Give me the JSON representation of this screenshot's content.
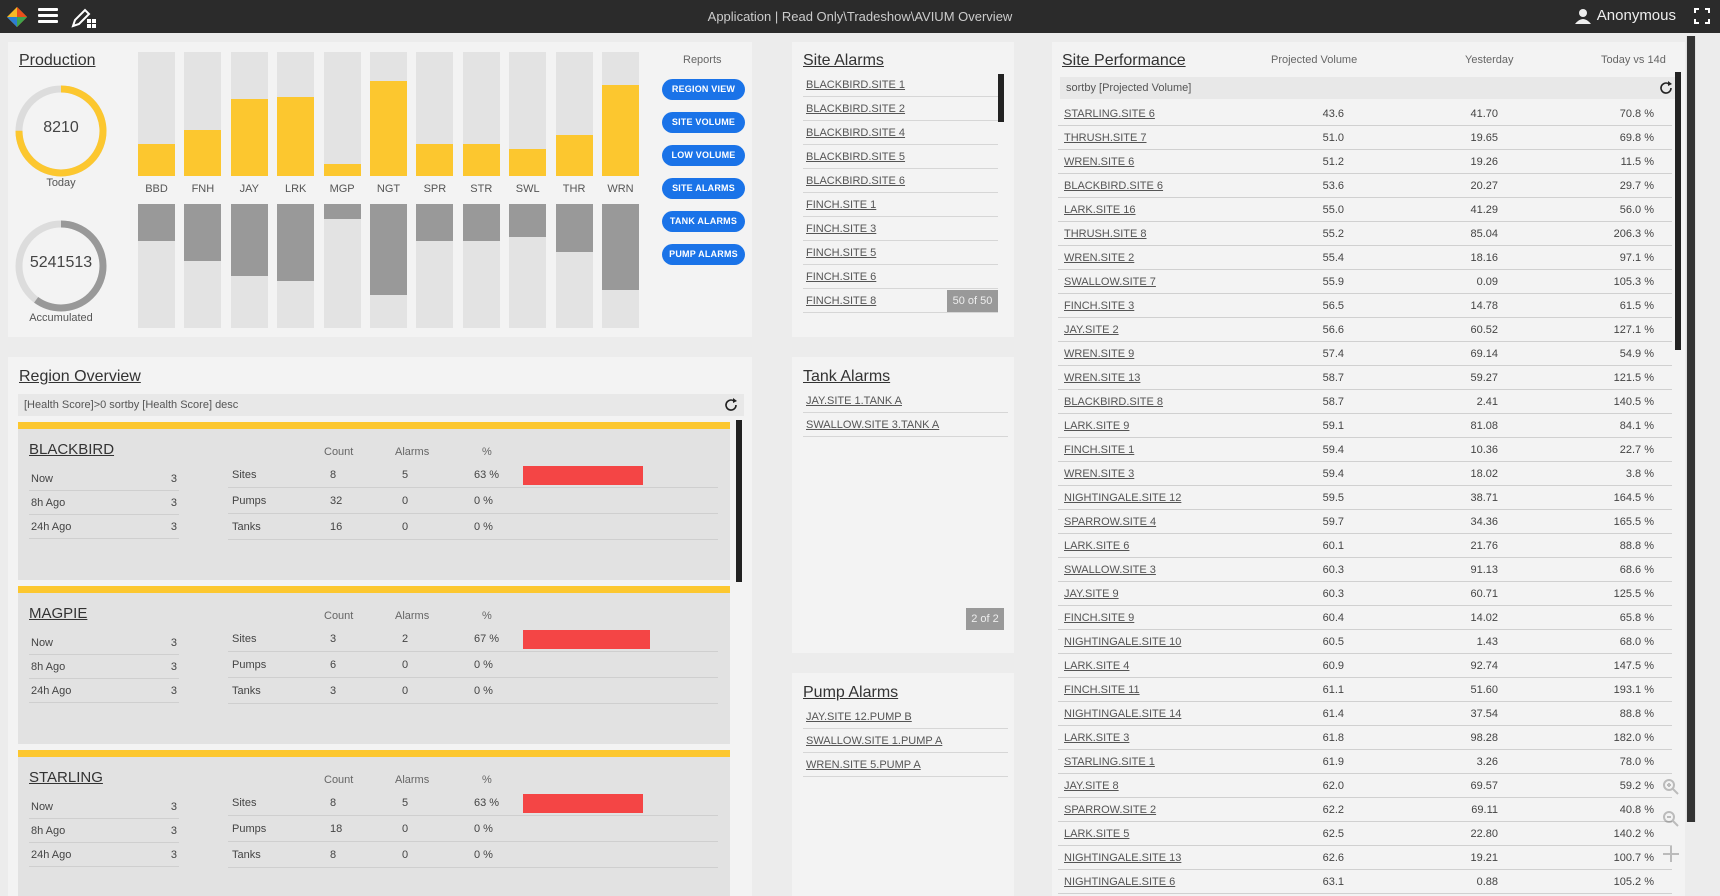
{
  "app": {
    "title": "Application | Read Only\\Tradeshow\\AVIUM Overview",
    "user": "Anonymous"
  },
  "production": {
    "title": "Production",
    "today_value": "8210",
    "today_label": "Today",
    "today_progress": 0.75,
    "accumulated_value": "5241513",
    "accumulated_label": "Accumulated",
    "accumulated_progress": 0.6,
    "bars": [
      {
        "label": "BBD",
        "up": 0.26,
        "down": 0.3
      },
      {
        "label": "FNH",
        "up": 0.37,
        "down": 0.46
      },
      {
        "label": "JAY",
        "up": 0.62,
        "down": 0.58
      },
      {
        "label": "LRK",
        "up": 0.64,
        "down": 0.62
      },
      {
        "label": "MGP",
        "up": 0.1,
        "down": 0.12
      },
      {
        "label": "NGT",
        "up": 0.77,
        "down": 0.73
      },
      {
        "label": "SPR",
        "up": 0.26,
        "down": 0.3
      },
      {
        "label": "STR",
        "up": 0.26,
        "down": 0.3
      },
      {
        "label": "SWL",
        "up": 0.22,
        "down": 0.27
      },
      {
        "label": "THR",
        "up": 0.33,
        "down": 0.39
      },
      {
        "label": "WRN",
        "up": 0.73,
        "down": 0.69
      }
    ],
    "reports_label": "Reports",
    "report_buttons": [
      "REGION VIEW",
      "SITE VOLUME",
      "LOW VOLUME",
      "SITE ALARMS",
      "TANK ALARMS",
      "PUMP ALARMS"
    ]
  },
  "site_alarms": {
    "title": "Site Alarms",
    "items": [
      "BLACKBIRD.SITE 1",
      "BLACKBIRD.SITE 2",
      "BLACKBIRD.SITE 4",
      "BLACKBIRD.SITE 5",
      "BLACKBIRD.SITE 6",
      "FINCH.SITE 1",
      "FINCH.SITE 3",
      "FINCH.SITE 5",
      "FINCH.SITE 6",
      "FINCH.SITE 8"
    ],
    "page": "50 of 50"
  },
  "tank_alarms": {
    "title": "Tank Alarms",
    "items": [
      "JAY.SITE 1.TANK A",
      "SWALLOW.SITE 3.TANK A"
    ],
    "page": "2 of 2"
  },
  "pump_alarms": {
    "title": "Pump Alarms",
    "items": [
      "JAY.SITE 12.PUMP B",
      "SWALLOW.SITE 1.PUMP A",
      "WREN.SITE 5.PUMP A"
    ]
  },
  "region": {
    "title": "Region Overview",
    "filter": "[Health Score]>0 sortby [Health Score] desc",
    "headers": {
      "count": "Count",
      "alarms": "Alarms",
      "pct": "%"
    },
    "cards": [
      {
        "name": "BLACKBIRD",
        "history": [
          {
            "label": "Now",
            "value": "3"
          },
          {
            "label": "8h Ago",
            "value": "3"
          },
          {
            "label": "24h Ago",
            "value": "3"
          }
        ],
        "stats": [
          {
            "label": "Sites",
            "count": "8",
            "alarms": "5",
            "pct": "63 %",
            "bar": 0.63
          },
          {
            "label": "Pumps",
            "count": "32",
            "alarms": "0",
            "pct": "0 %",
            "bar": 0
          },
          {
            "label": "Tanks",
            "count": "16",
            "alarms": "0",
            "pct": "0 %",
            "bar": 0
          }
        ]
      },
      {
        "name": "MAGPIE",
        "history": [
          {
            "label": "Now",
            "value": "3"
          },
          {
            "label": "8h Ago",
            "value": "3"
          },
          {
            "label": "24h Ago",
            "value": "3"
          }
        ],
        "stats": [
          {
            "label": "Sites",
            "count": "3",
            "alarms": "2",
            "pct": "67 %",
            "bar": 0.67
          },
          {
            "label": "Pumps",
            "count": "6",
            "alarms": "0",
            "pct": "0 %",
            "bar": 0
          },
          {
            "label": "Tanks",
            "count": "3",
            "alarms": "0",
            "pct": "0 %",
            "bar": 0
          }
        ]
      },
      {
        "name": "STARLING",
        "history": [
          {
            "label": "Now",
            "value": "3"
          },
          {
            "label": "8h Ago",
            "value": "3"
          },
          {
            "label": "24h Ago",
            "value": "3"
          }
        ],
        "stats": [
          {
            "label": "Sites",
            "count": "8",
            "alarms": "5",
            "pct": "63 %",
            "bar": 0.63
          },
          {
            "label": "Pumps",
            "count": "18",
            "alarms": "0",
            "pct": "0 %",
            "bar": 0
          },
          {
            "label": "Tanks",
            "count": "8",
            "alarms": "0",
            "pct": "0 %",
            "bar": 0
          }
        ]
      }
    ]
  },
  "performance": {
    "title": "Site Performance",
    "headers": {
      "projected": "Projected Volume",
      "yesterday": "Yesterday",
      "today_vs": "Today vs 14d"
    },
    "filter": "sortby [Projected Volume]",
    "rows": [
      [
        "STARLING.SITE 6",
        "43.6",
        "41.70",
        "70.8 %"
      ],
      [
        "THRUSH.SITE 7",
        "51.0",
        "19.65",
        "69.8 %"
      ],
      [
        "WREN.SITE 6",
        "51.2",
        "19.26",
        "11.5 %"
      ],
      [
        "BLACKBIRD.SITE 6",
        "53.6",
        "20.27",
        "29.7 %"
      ],
      [
        "LARK.SITE 16",
        "55.0",
        "41.29",
        "56.0 %"
      ],
      [
        "THRUSH.SITE 8",
        "55.2",
        "85.04",
        "206.3 %"
      ],
      [
        "WREN.SITE 2",
        "55.4",
        "18.16",
        "97.1 %"
      ],
      [
        "SWALLOW.SITE 7",
        "55.9",
        "0.09",
        "105.3 %"
      ],
      [
        "FINCH.SITE 3",
        "56.5",
        "14.78",
        "61.5 %"
      ],
      [
        "JAY.SITE 2",
        "56.6",
        "60.52",
        "127.1 %"
      ],
      [
        "WREN.SITE 9",
        "57.4",
        "69.14",
        "54.9 %"
      ],
      [
        "WREN.SITE 13",
        "58.7",
        "59.27",
        "121.5 %"
      ],
      [
        "BLACKBIRD.SITE 8",
        "58.7",
        "2.41",
        "140.5 %"
      ],
      [
        "LARK.SITE 9",
        "59.1",
        "81.08",
        "84.1 %"
      ],
      [
        "FINCH.SITE 1",
        "59.4",
        "10.36",
        "22.7 %"
      ],
      [
        "WREN.SITE 3",
        "59.4",
        "18.02",
        "3.8 %"
      ],
      [
        "NIGHTINGALE.SITE 12",
        "59.5",
        "38.71",
        "164.5 %"
      ],
      [
        "SPARROW.SITE 4",
        "59.7",
        "34.36",
        "165.5 %"
      ],
      [
        "LARK.SITE 6",
        "60.1",
        "21.76",
        "88.8 %"
      ],
      [
        "SWALLOW.SITE 3",
        "60.3",
        "91.13",
        "68.6 %"
      ],
      [
        "JAY.SITE 9",
        "60.3",
        "60.71",
        "125.5 %"
      ],
      [
        "FINCH.SITE 9",
        "60.4",
        "14.02",
        "65.8 %"
      ],
      [
        "NIGHTINGALE.SITE 10",
        "60.5",
        "1.43",
        "68.0 %"
      ],
      [
        "LARK.SITE 4",
        "60.9",
        "92.74",
        "147.5 %"
      ],
      [
        "FINCH.SITE 11",
        "61.1",
        "51.60",
        "193.1 %"
      ],
      [
        "NIGHTINGALE.SITE 14",
        "61.4",
        "37.54",
        "88.8 %"
      ],
      [
        "LARK.SITE 3",
        "61.8",
        "98.28",
        "182.0 %"
      ],
      [
        "STARLING.SITE 1",
        "61.9",
        "3.26",
        "78.0 %"
      ],
      [
        "JAY.SITE 8",
        "62.0",
        "69.57",
        "59.2 %"
      ],
      [
        "SPARROW.SITE 2",
        "62.2",
        "69.11",
        "40.8 %"
      ],
      [
        "LARK.SITE 5",
        "62.5",
        "22.80",
        "140.2 %"
      ],
      [
        "NIGHTINGALE.SITE 13",
        "62.6",
        "19.21",
        "100.7 %"
      ],
      [
        "NIGHTINGALE.SITE 6",
        "63.1",
        "0.88",
        "105.2 %"
      ]
    ]
  },
  "colors": {
    "accent_yellow": "#fcc72f",
    "button_blue": "#1a73e8",
    "alarm_red": "#f44545",
    "topbar": "#2b2b2b"
  }
}
